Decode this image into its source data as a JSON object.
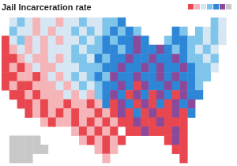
{
  "chart_data": {
    "type": "heatmap",
    "title": "Jail Incarceration rate",
    "tick_labels": false,
    "grid": false,
    "legend": "top-right",
    "colors": [
      "#e8474f",
      "#f5b5b8",
      "#d6e6f2",
      "#7fc4ea",
      "#2e86d6",
      "#8a4a9c",
      "#c8c8c8"
    ],
    "cells": [
      [
        null,
        3,
        4,
        3,
        2,
        3,
        3,
        2,
        3,
        3,
        4,
        3,
        3,
        4,
        4,
        5,
        null,
        null,
        null,
        null,
        null,
        null,
        null,
        null,
        null,
        null,
        null,
        4,
        3,
        null
      ],
      [
        null,
        4,
        3,
        3,
        2,
        3,
        2,
        3,
        3,
        4,
        3,
        4,
        3,
        4,
        5,
        4,
        5,
        4,
        null,
        null,
        null,
        null,
        5,
        4,
        null,
        4,
        3,
        4,
        3,
        null
      ],
      [
        1,
        3,
        4,
        2,
        3,
        2,
        3,
        2,
        3,
        3,
        4,
        3,
        4,
        5,
        4,
        5,
        5,
        6,
        5,
        null,
        null,
        4,
        5,
        5,
        4,
        4,
        3,
        4,
        3,
        null
      ],
      [
        1,
        2,
        3,
        2,
        3,
        2,
        3,
        3,
        3,
        4,
        3,
        4,
        4,
        5,
        5,
        4,
        5,
        6,
        5,
        5,
        6,
        5,
        4,
        5,
        4,
        3,
        4,
        3,
        null,
        null
      ],
      [
        1,
        1,
        2,
        3,
        2,
        2,
        3,
        2,
        3,
        4,
        4,
        3,
        5,
        4,
        5,
        5,
        6,
        5,
        5,
        6,
        5,
        5,
        6,
        5,
        4,
        4,
        3,
        4,
        null,
        null
      ],
      [
        1,
        2,
        1,
        2,
        3,
        2,
        2,
        3,
        3,
        3,
        4,
        4,
        4,
        5,
        5,
        6,
        5,
        5,
        6,
        5,
        6,
        5,
        5,
        6,
        5,
        4,
        4,
        3,
        null,
        null
      ],
      [
        1,
        1,
        2,
        2,
        1,
        2,
        3,
        2,
        3,
        4,
        3,
        4,
        5,
        4,
        6,
        5,
        5,
        6,
        5,
        5,
        6,
        5,
        6,
        5,
        5,
        4,
        4,
        null,
        null,
        null
      ],
      [
        1,
        2,
        1,
        1,
        2,
        2,
        2,
        3,
        2,
        3,
        4,
        3,
        4,
        5,
        5,
        6,
        5,
        1,
        6,
        5,
        5,
        6,
        5,
        6,
        5,
        4,
        null,
        null,
        null,
        null
      ],
      [
        null,
        1,
        1,
        2,
        1,
        2,
        2,
        2,
        3,
        2,
        3,
        2,
        4,
        5,
        6,
        5,
        1,
        6,
        5,
        1,
        6,
        5,
        1,
        6,
        5,
        5,
        null,
        null,
        null,
        null
      ],
      [
        null,
        null,
        1,
        1,
        2,
        1,
        2,
        2,
        1,
        2,
        2,
        1,
        2,
        5,
        1,
        6,
        5,
        1,
        6,
        1,
        5,
        1,
        6,
        5,
        6,
        null,
        null,
        null,
        null,
        null
      ],
      [
        null,
        null,
        null,
        1,
        2,
        1,
        2,
        1,
        2,
        1,
        2,
        2,
        1,
        2,
        1,
        6,
        1,
        5,
        1,
        6,
        1,
        1,
        6,
        1,
        5,
        null,
        null,
        null,
        null,
        null
      ],
      [
        null,
        null,
        null,
        null,
        null,
        2,
        1,
        2,
        2,
        1,
        2,
        1,
        2,
        1,
        2,
        1,
        1,
        6,
        1,
        1,
        6,
        1,
        1,
        1,
        null,
        null,
        null,
        null,
        null,
        null
      ],
      [
        null,
        null,
        null,
        null,
        null,
        null,
        null,
        null,
        null,
        2,
        1,
        2,
        1,
        2,
        1,
        null,
        1,
        1,
        6,
        1,
        1,
        1,
        6,
        1,
        null,
        null,
        null,
        null,
        null,
        null
      ],
      [
        null,
        7,
        7,
        7,
        7,
        null,
        null,
        null,
        null,
        null,
        2,
        1,
        2,
        1,
        2,
        1,
        null,
        null,
        null,
        null,
        null,
        1,
        6,
        1,
        null,
        null,
        null,
        null,
        null,
        null
      ],
      [
        null,
        7,
        7,
        7,
        7,
        7,
        null,
        null,
        null,
        null,
        null,
        null,
        2,
        1,
        2,
        null,
        null,
        null,
        null,
        null,
        null,
        null,
        1,
        1,
        null,
        null,
        null,
        null,
        null,
        null
      ],
      [
        null,
        7,
        7,
        7,
        null,
        null,
        null,
        null,
        null,
        null,
        null,
        null,
        null,
        2,
        null,
        null,
        null,
        null,
        null,
        null,
        null,
        null,
        null,
        1,
        null,
        null,
        null,
        null,
        null,
        null
      ]
    ]
  }
}
